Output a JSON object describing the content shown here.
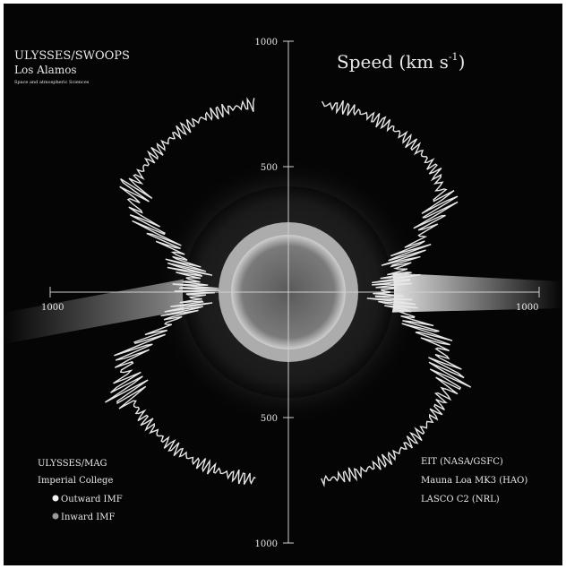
{
  "chart_data": {
    "type": "polar-line",
    "title": "Speed (km s",
    "title_superscript": "-1",
    "title_suffix": ")",
    "radial_ticks": {
      "top_1000": "1000",
      "top_500": "500",
      "bottom_500": "500",
      "bottom_1000": "1000",
      "left_1000": "1000",
      "right_1000": "1000"
    },
    "r_range": [
      0,
      1000
    ],
    "credits_top_left": {
      "line1": "ULYSSES/SWOOPS",
      "line2": "Los Alamos",
      "line3": "Space and atmospheric Sciences"
    },
    "credits_bottom_left": {
      "line1": "ULYSSES/MAG",
      "line2": "Imperial College",
      "legend_outward": "Outward IMF",
      "legend_inward": "Inward IMF"
    },
    "credits_bottom_right": {
      "line1": "EIT (NASA/GSFC)",
      "line2": "Mauna Loa MK3 (HAO)",
      "line3": "LASCO C2 (NRL)"
    },
    "series": [
      {
        "latitude_deg": [
          80,
          70,
          60,
          50,
          40,
          35,
          30,
          25,
          20,
          15,
          10,
          5,
          0,
          -5,
          -10,
          -15,
          -20,
          -25,
          -30,
          -40,
          -50,
          -60,
          -70,
          -80
        ],
        "speed_right": [
          760,
          770,
          775,
          770,
          760,
          740,
          700,
          620,
          520,
          470,
          450,
          420,
          380,
          420,
          470,
          560,
          640,
          700,
          740,
          760,
          770,
          775,
          770,
          760
        ],
        "speed_left": [
          760,
          770,
          775,
          770,
          760,
          750,
          720,
          600,
          480,
          420,
          400,
          380,
          360,
          380,
          420,
          500,
          640,
          720,
          750,
          765,
          770,
          770,
          765,
          760
        ]
      }
    ],
    "colors": {
      "trace": "#e6e6e6",
      "background": "#050505",
      "axes": "#cfcfcf"
    }
  }
}
